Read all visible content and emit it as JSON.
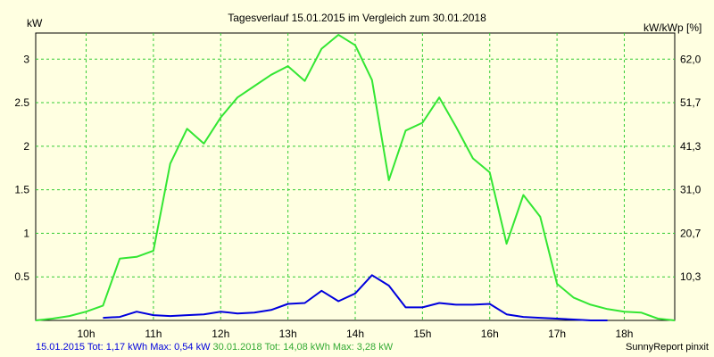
{
  "chart_data": {
    "type": "line",
    "title": "Tagesverlauf 15.01.2015 im Vergleich zum 30.01.2018",
    "ylabel_left": "kW",
    "ylabel_right": "kW/kWp [%]",
    "x_ticks": [
      "10h",
      "11h",
      "12h",
      "13h",
      "14h",
      "15h",
      "16h",
      "17h",
      "18h"
    ],
    "x_tick_values": [
      10,
      11,
      12,
      13,
      14,
      15,
      16,
      17,
      18
    ],
    "xlim": [
      9.25,
      18.75
    ],
    "ylim": [
      0,
      3.3
    ],
    "y_ticks": [
      "0.5",
      "1",
      "1.5",
      "2",
      "2.5",
      "3"
    ],
    "y_tick_values": [
      0.5,
      1,
      1.5,
      2,
      2.5,
      3
    ],
    "y2_ticks": [
      "10,3",
      "20,7",
      "31,0",
      "41,3",
      "51,7",
      "62,0"
    ],
    "grid": true,
    "series": [
      {
        "name": "30.01.2018",
        "color": "#33e633",
        "x": [
          9.25,
          9.5,
          9.75,
          10.0,
          10.25,
          10.5,
          10.75,
          11.0,
          11.25,
          11.5,
          11.75,
          12.0,
          12.25,
          12.5,
          12.75,
          13.0,
          13.25,
          13.5,
          13.75,
          14.0,
          14.25,
          14.5,
          14.75,
          15.0,
          15.25,
          15.5,
          15.75,
          16.0,
          16.25,
          16.5,
          16.75,
          17.0,
          17.25,
          17.5,
          17.75,
          18.0,
          18.25,
          18.5,
          18.75
        ],
        "values": [
          0.0,
          0.02,
          0.05,
          0.1,
          0.17,
          0.71,
          0.73,
          0.8,
          1.8,
          2.2,
          2.03,
          2.33,
          2.56,
          2.69,
          2.82,
          2.92,
          2.75,
          3.12,
          3.28,
          3.16,
          2.76,
          1.61,
          2.18,
          2.27,
          2.56,
          2.22,
          1.86,
          1.7,
          0.88,
          1.44,
          1.19,
          0.42,
          0.26,
          0.18,
          0.13,
          0.1,
          0.09,
          0.02,
          0.0
        ]
      },
      {
        "name": "15.01.2015",
        "color": "#0000dd",
        "x": [
          10.25,
          10.5,
          10.75,
          11.0,
          11.25,
          11.5,
          11.75,
          12.0,
          12.25,
          12.5,
          12.75,
          13.0,
          13.25,
          13.5,
          13.75,
          14.0,
          14.25,
          14.5,
          14.75,
          15.0,
          15.25,
          15.5,
          15.75,
          16.0,
          16.25,
          16.5,
          16.75,
          17.0,
          17.25,
          17.5,
          17.75
        ],
        "values": [
          0.03,
          0.04,
          0.1,
          0.06,
          0.05,
          0.06,
          0.07,
          0.1,
          0.08,
          0.09,
          0.12,
          0.19,
          0.2,
          0.34,
          0.22,
          0.31,
          0.52,
          0.4,
          0.15,
          0.15,
          0.2,
          0.18,
          0.18,
          0.19,
          0.07,
          0.04,
          0.03,
          0.02,
          0.01,
          0.0,
          0.0
        ]
      }
    ]
  },
  "footer": {
    "entry1": "15.01.2015 Tot: 1,17 kWh Max: 0,54 kW",
    "entry1_color": "#0000dd",
    "entry2": "30.01.2018 Tot: 14,08 kWh Max: 3,28 kW",
    "entry2_color": "#33aa33",
    "brand": "SunnyReport pinxit"
  }
}
